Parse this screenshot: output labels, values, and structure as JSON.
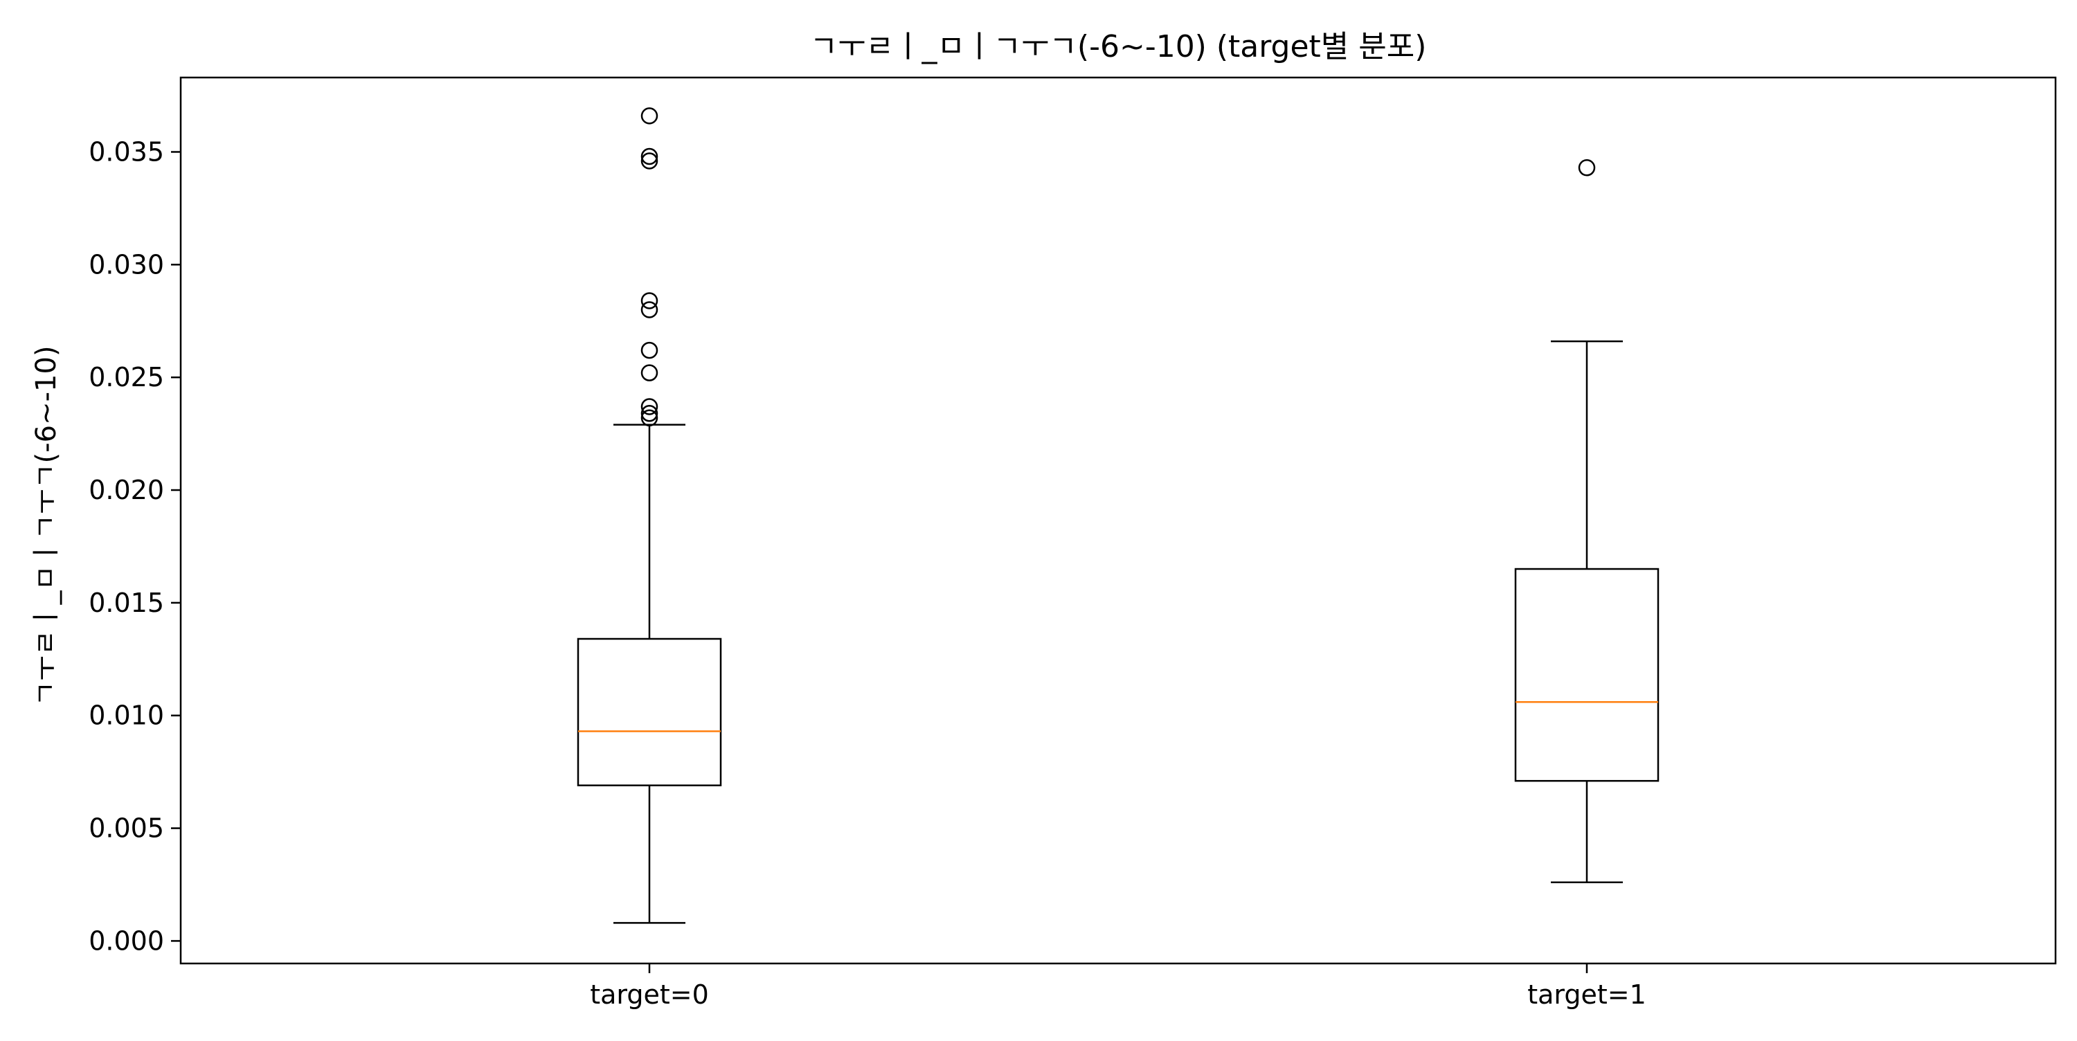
{
  "chart_data": {
    "type": "box",
    "title": "ㄱㅜㄹㅣ_ㅁㅣㄱㅜㄱ(-6~-10) (target별 분포)",
    "xlabel": "",
    "ylabel": "ㄱㅜㄹㅣ_ㅁㅣㄱㅜㄱ(-6~-10)",
    "categories": [
      "target=0",
      "target=1"
    ],
    "ylim": [
      -0.001,
      0.0383
    ],
    "yticks": [
      0.0,
      0.005,
      0.01,
      0.015,
      0.02,
      0.025,
      0.03,
      0.035
    ],
    "ytick_labels": [
      "0.000",
      "0.005",
      "0.010",
      "0.015",
      "0.020",
      "0.025",
      "0.030",
      "0.035"
    ],
    "grid": false,
    "boxes": [
      {
        "category": "target=0",
        "whisker_low": 0.0008,
        "q1": 0.0069,
        "median": 0.0093,
        "q3": 0.0134,
        "whisker_high": 0.0229,
        "outliers": [
          0.0232,
          0.0234,
          0.0237,
          0.0252,
          0.0262,
          0.028,
          0.0284,
          0.0346,
          0.0348,
          0.0366
        ]
      },
      {
        "category": "target=1",
        "whisker_low": 0.0026,
        "q1": 0.0071,
        "median": 0.0106,
        "q3": 0.0165,
        "whisker_high": 0.0266,
        "outliers": [
          0.0343
        ]
      }
    ],
    "colors": {
      "box": "#000000",
      "median": "#ff7f0e",
      "outlier": "#000000"
    }
  }
}
